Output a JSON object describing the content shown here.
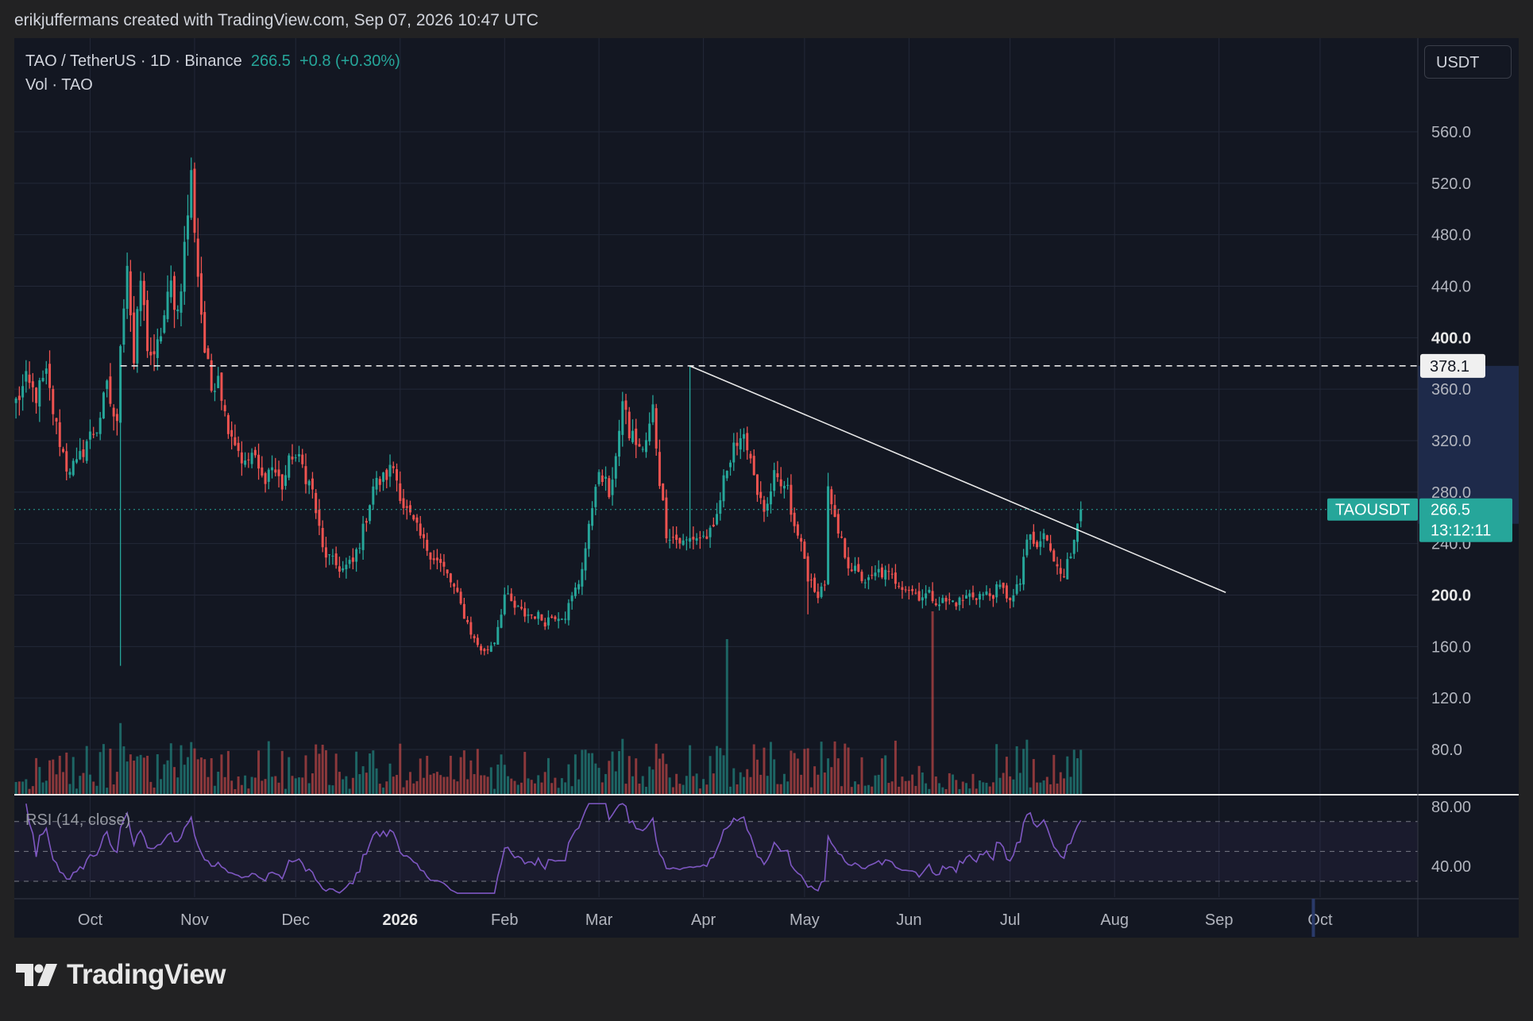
{
  "header": {
    "created_by": "erikjuffermans created with TradingView.com, Sep 07, 2026 10:47 UTC"
  },
  "legend": {
    "symbol_line": "TAO / TetherUS · 1D · Binance",
    "last_price": "266.5",
    "change": "+0.8 (+0.30%)",
    "volume_label": "Vol · TAO",
    "rsi_label": "RSI (14, close)"
  },
  "currency_button": "USDT",
  "logo_text": "TradingView",
  "colors": {
    "background": "#222223",
    "pane": "#131722",
    "up": "#26a69a",
    "down": "#ef5350",
    "rsi": "#7e57c2",
    "grid": "#232838"
  },
  "chart_data": {
    "type": "candlestick",
    "symbol": "TAOUSDT",
    "timeframe": "1D",
    "exchange": "Binance",
    "ylim": [
      40,
      590
    ],
    "y_ticks": [
      {
        "value": 80,
        "label": "80.0",
        "bold": false
      },
      {
        "value": 120,
        "label": "120.0",
        "bold": false
      },
      {
        "value": 160,
        "label": "160.0",
        "bold": false
      },
      {
        "value": 200,
        "label": "200.0",
        "bold": true
      },
      {
        "value": 240,
        "label": "240.0",
        "bold": false
      },
      {
        "value": 280,
        "label": "280.0",
        "bold": false
      },
      {
        "value": 320,
        "label": "320.0",
        "bold": false
      },
      {
        "value": 360,
        "label": "360.0",
        "bold": false
      },
      {
        "value": 400,
        "label": "400.0",
        "bold": true
      },
      {
        "value": 440,
        "label": "440.0",
        "bold": false
      },
      {
        "value": 480,
        "label": "480.0",
        "bold": false
      },
      {
        "value": 520,
        "label": "520.0",
        "bold": false
      },
      {
        "value": 560,
        "label": "560.0",
        "bold": false
      }
    ],
    "x_ticks": [
      {
        "day": 0,
        "label": "Oct",
        "bold": false
      },
      {
        "day": 31,
        "label": "Nov",
        "bold": false
      },
      {
        "day": 61,
        "label": "Dec",
        "bold": false
      },
      {
        "day": 92,
        "label": "2026",
        "bold": true
      },
      {
        "day": 123,
        "label": "Feb",
        "bold": false
      },
      {
        "day": 151,
        "label": "Mar",
        "bold": false
      },
      {
        "day": 182,
        "label": "Apr",
        "bold": false
      },
      {
        "day": 212,
        "label": "May",
        "bold": false
      },
      {
        "day": 243,
        "label": "Jun",
        "bold": false
      },
      {
        "day": 273,
        "label": "Jul",
        "bold": false
      },
      {
        "day": 304,
        "label": "Aug",
        "bold": false
      },
      {
        "day": 335,
        "label": "Sep",
        "bold": false
      },
      {
        "day": 365,
        "label": "Oct",
        "bold": false
      }
    ],
    "x_range_days": [
      -22.5,
      394
    ],
    "last_day": 341,
    "price_anchors": [
      [
        -22,
        350
      ],
      [
        -19,
        365
      ],
      [
        -16,
        355
      ],
      [
        -13,
        370
      ],
      [
        -10,
        330
      ],
      [
        -7,
        300
      ],
      [
        -4,
        300
      ],
      [
        -1,
        320
      ],
      [
        2,
        330
      ],
      [
        5,
        360
      ],
      [
        8,
        330
      ],
      [
        9,
        400
      ],
      [
        11,
        460
      ],
      [
        13,
        380
      ],
      [
        15,
        445
      ],
      [
        17,
        395
      ],
      [
        19,
        380
      ],
      [
        21,
        405
      ],
      [
        24,
        440
      ],
      [
        26,
        420
      ],
      [
        28,
        470
      ],
      [
        30,
        525
      ],
      [
        32,
        450
      ],
      [
        34,
        390
      ],
      [
        36,
        360
      ],
      [
        38,
        375
      ],
      [
        40,
        340
      ],
      [
        43,
        320
      ],
      [
        46,
        300
      ],
      [
        48,
        310
      ],
      [
        51,
        290
      ],
      [
        54,
        300
      ],
      [
        57,
        285
      ],
      [
        60,
        310
      ],
      [
        63,
        300
      ],
      [
        66,
        280
      ],
      [
        69,
        235
      ],
      [
        72,
        225
      ],
      [
        75,
        220
      ],
      [
        78,
        225
      ],
      [
        81,
        250
      ],
      [
        84,
        285
      ],
      [
        87,
        290
      ],
      [
        90,
        300
      ],
      [
        93,
        270
      ],
      [
        96,
        255
      ],
      [
        99,
        240
      ],
      [
        102,
        230
      ],
      [
        105,
        220
      ],
      [
        108,
        205
      ],
      [
        111,
        185
      ],
      [
        114,
        165
      ],
      [
        117,
        155
      ],
      [
        120,
        165
      ],
      [
        123,
        200
      ],
      [
        126,
        190
      ],
      [
        129,
        185
      ],
      [
        132,
        185
      ],
      [
        135,
        180
      ],
      [
        138,
        185
      ],
      [
        141,
        185
      ],
      [
        145,
        210
      ],
      [
        148,
        250
      ],
      [
        150,
        290
      ],
      [
        152,
        290
      ],
      [
        154,
        280
      ],
      [
        157,
        320
      ],
      [
        158,
        355
      ],
      [
        160,
        325
      ],
      [
        162,
        320
      ],
      [
        164,
        310
      ],
      [
        166,
        330
      ],
      [
        167,
        345
      ],
      [
        169,
        290
      ],
      [
        171,
        250
      ],
      [
        173,
        245
      ],
      [
        176,
        240
      ],
      [
        179,
        245
      ],
      [
        182,
        245
      ],
      [
        185,
        248
      ],
      [
        187,
        275
      ],
      [
        189,
        300
      ],
      [
        191,
        320
      ],
      [
        193,
        315
      ],
      [
        195,
        320
      ],
      [
        197,
        295
      ],
      [
        199,
        270
      ],
      [
        201,
        265
      ],
      [
        203,
        290
      ],
      [
        205,
        285
      ],
      [
        207,
        280
      ],
      [
        209,
        250
      ],
      [
        211,
        240
      ],
      [
        213,
        215
      ],
      [
        215,
        200
      ],
      [
        217,
        205
      ],
      [
        218,
        210
      ],
      [
        219,
        280
      ],
      [
        221,
        255
      ],
      [
        223,
        240
      ],
      [
        225,
        225
      ],
      [
        228,
        215
      ],
      [
        231,
        210
      ],
      [
        234,
        218
      ],
      [
        237,
        215
      ],
      [
        240,
        210
      ],
      [
        243,
        205
      ],
      [
        246,
        200
      ],
      [
        249,
        200
      ],
      [
        252,
        195
      ],
      [
        255,
        195
      ],
      [
        258,
        195
      ],
      [
        261,
        200
      ],
      [
        264,
        200
      ],
      [
        267,
        200
      ],
      [
        270,
        205
      ],
      [
        272,
        200
      ],
      [
        274,
        198
      ],
      [
        276,
        210
      ],
      [
        277,
        230
      ],
      [
        279,
        245
      ],
      [
        281,
        235
      ],
      [
        283,
        248
      ],
      [
        285,
        232
      ],
      [
        287,
        225
      ],
      [
        289,
        218
      ],
      [
        291,
        230
      ],
      [
        292,
        245
      ],
      [
        293,
        262
      ],
      [
        294,
        266.5
      ]
    ],
    "rsi_ylim": [
      20,
      90
    ],
    "rsi_ticks": [
      {
        "value": 80,
        "label": "80.00"
      },
      {
        "value": 40,
        "label": "40.00"
      }
    ],
    "rsi_bands": [
      70,
      50,
      30
    ],
    "current_price": 266.5,
    "current_price_label": "266.5",
    "countdown": "13:12:11",
    "symbol_label": "TAOUSDT",
    "resistance_level": 378.1,
    "resistance_label": "378.1",
    "trendline": {
      "start": {
        "day": 178,
        "price": 378
      },
      "end": {
        "day": 337,
        "price": 202
      }
    }
  }
}
